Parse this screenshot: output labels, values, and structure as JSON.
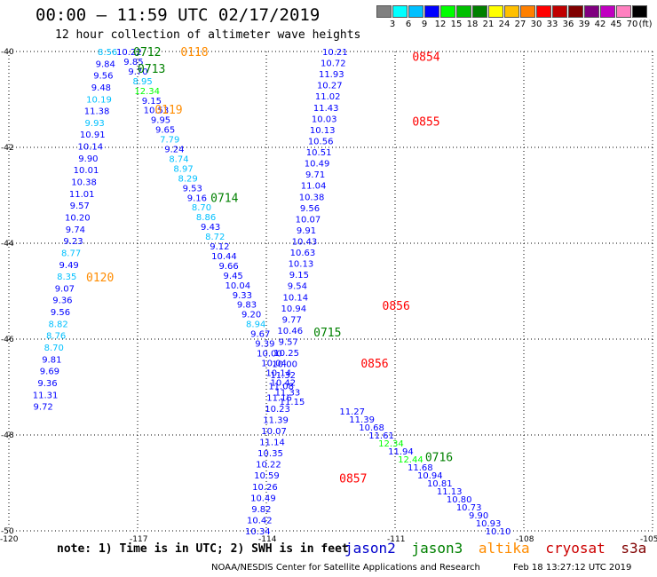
{
  "header": {
    "title": "00:00 — 11:59 UTC 02/17/2019",
    "subtitle": "12 hour collection of altimeter wave heights"
  },
  "color_scale": {
    "labels": [
      "3",
      "6",
      "9",
      "12",
      "15",
      "18",
      "21",
      "24",
      "27",
      "30",
      "33",
      "36",
      "39",
      "42",
      "45",
      "70",
      "(ft)"
    ],
    "colors": [
      "#808080",
      "#00ffff",
      "#00c0ff",
      "#0000ff",
      "#00ff00",
      "#00c000",
      "#008000",
      "#ffff00",
      "#ffc000",
      "#ff8000",
      "#ff0000",
      "#c00000",
      "#800000",
      "#800080",
      "#c000c0",
      "#ff80c0",
      "#000000"
    ]
  },
  "axes": {
    "lat_labels": [
      "-40",
      "-42",
      "-44",
      "-46",
      "-48",
      "-50"
    ],
    "lon_labels": [
      "-120",
      "-117",
      "-114",
      "-111",
      "-108",
      "-105"
    ],
    "lat_range": [
      -50,
      -40
    ],
    "lon_range": [
      -120,
      -105
    ],
    "grid": true
  },
  "tracks": [
    {
      "name": "track-a",
      "start": [
        -117.7,
        -40.0
      ],
      "end": [
        -119.2,
        -47.4
      ],
      "values": [
        "8.56",
        "9.84",
        "9.56",
        "9.48",
        "10.19",
        "11.38",
        "9.93",
        "10.91",
        "10.14",
        "9.90",
        "10.01",
        "10.38",
        "11.01",
        "9.57",
        "10.20",
        "9.74",
        "9.23",
        "8.77",
        "9.49",
        "8.35",
        "9.07",
        "9.36",
        "9.56",
        "8.82",
        "8.76",
        "8.70",
        "9.81",
        "9.69",
        "9.36",
        "11.31",
        "9.72"
      ],
      "colors": [
        "#00c0ff",
        "#0000ff",
        "#0000ff",
        "#0000ff",
        "#00c0ff",
        "#0000ff",
        "#00c0ff",
        "#0000ff",
        "#0000ff",
        "#0000ff",
        "#0000ff",
        "#0000ff",
        "#0000ff",
        "#0000ff",
        "#0000ff",
        "#0000ff",
        "#0000ff",
        "#00c0ff",
        "#0000ff",
        "#00c0ff",
        "#0000ff",
        "#0000ff",
        "#0000ff",
        "#00c0ff",
        "#00c0ff",
        "#00c0ff",
        "#0000ff",
        "#0000ff",
        "#0000ff",
        "#0000ff",
        "#0000ff"
      ]
    },
    {
      "name": "track-b",
      "start": [
        -117.2,
        -40.0
      ],
      "end": [
        -113.4,
        -47.3
      ],
      "values": [
        "10.22",
        "9.85",
        "9.70",
        "8.95",
        "12.34",
        "9.15",
        "10.53",
        "9.95",
        "9.65",
        "7.79",
        "9.24",
        "8.74",
        "8.97",
        "8.29",
        "9.53",
        "9.16",
        "8.70",
        "8.86",
        "9.43",
        "8.72",
        "9.12",
        "10.44",
        "9.66",
        "9.45",
        "10.04",
        "9.33",
        "9.83",
        "9.20",
        "8.94",
        "9.67",
        "9.39",
        "10.00",
        "10.04",
        "10.14",
        "10.42",
        "11.33",
        "11.15"
      ],
      "colors": [
        "#0000ff",
        "#0000ff",
        "#0000ff",
        "#00c0ff",
        "#00ff00",
        "#0000ff",
        "#0000ff",
        "#0000ff",
        "#0000ff",
        "#00c0ff",
        "#0000ff",
        "#00c0ff",
        "#00c0ff",
        "#00c0ff",
        "#0000ff",
        "#0000ff",
        "#00c0ff",
        "#00c0ff",
        "#0000ff",
        "#00c0ff",
        "#0000ff",
        "#0000ff",
        "#0000ff",
        "#0000ff",
        "#0000ff",
        "#0000ff",
        "#0000ff",
        "#0000ff",
        "#00c0ff",
        "#0000ff",
        "#0000ff",
        "#0000ff",
        "#0000ff",
        "#0000ff",
        "#0000ff",
        "#0000ff",
        "#0000ff"
      ]
    },
    {
      "name": "track-c",
      "start": [
        -112.4,
        -40.0
      ],
      "end": [
        -114.2,
        -50.0
      ],
      "values": [
        "10.21",
        "10.72",
        "11.93",
        "10.27",
        "11.02",
        "11.43",
        "10.03",
        "10.13",
        "10.56",
        "10.51",
        "10.49",
        "9.71",
        "11.04",
        "10.38",
        "9.56",
        "10.07",
        "9.91",
        "10.43",
        "10.63",
        "10.13",
        "9.15",
        "9.54",
        "10.14",
        "10.94",
        "9.77",
        "10.46",
        "9.57",
        "10.25",
        "10.00",
        "11.32",
        "11.08",
        "11.16",
        "10.23",
        "11.39",
        "10.07",
        "11.14",
        "10.35",
        "10.22",
        "10.59",
        "10.26",
        "10.49",
        "9.82",
        "10.42",
        "10.34"
      ],
      "colors": [
        "#0000ff",
        "#0000ff",
        "#0000ff",
        "#0000ff",
        "#0000ff",
        "#0000ff",
        "#0000ff",
        "#0000ff",
        "#0000ff",
        "#0000ff",
        "#0000ff",
        "#0000ff",
        "#0000ff",
        "#0000ff",
        "#0000ff",
        "#0000ff",
        "#0000ff",
        "#0000ff",
        "#0000ff",
        "#0000ff",
        "#0000ff",
        "#0000ff",
        "#0000ff",
        "#0000ff",
        "#0000ff",
        "#0000ff",
        "#0000ff",
        "#0000ff",
        "#0000ff",
        "#0000ff",
        "#0000ff",
        "#0000ff",
        "#0000ff",
        "#0000ff",
        "#0000ff",
        "#0000ff",
        "#0000ff",
        "#0000ff",
        "#0000ff",
        "#0000ff",
        "#0000ff",
        "#0000ff",
        "#0000ff",
        "#0000ff"
      ]
    },
    {
      "name": "track-d",
      "start": [
        -112.0,
        -47.5
      ],
      "end": [
        -108.6,
        -50.0
      ],
      "values": [
        "11.27",
        "11.39",
        "10.68",
        "11.61",
        "12.34",
        "11.94",
        "12.44",
        "11.68",
        "10.94",
        "10.81",
        "11.13",
        "10.80",
        "10.73",
        "9.90",
        "10.93",
        "10.10"
      ],
      "colors": [
        "#0000ff",
        "#0000ff",
        "#0000ff",
        "#0000ff",
        "#00ff00",
        "#0000ff",
        "#00ff00",
        "#0000ff",
        "#0000ff",
        "#0000ff",
        "#0000ff",
        "#0000ff",
        "#0000ff",
        "#0000ff",
        "#0000ff",
        "#0000ff"
      ]
    }
  ],
  "time_labels": [
    {
      "text": "0712",
      "color": "#008000",
      "lon": -117.1,
      "lat": -40.0
    },
    {
      "text": "0118",
      "color": "#ff8c00",
      "lon": -116.0,
      "lat": -40.0
    },
    {
      "text": "0713",
      "color": "#008000",
      "lon": -117.0,
      "lat": -40.35
    },
    {
      "text": "0119",
      "color": "#ff8c00",
      "lon": -116.6,
      "lat": -41.2
    },
    {
      "text": "0714",
      "color": "#008000",
      "lon": -115.3,
      "lat": -43.05
    },
    {
      "text": "0120",
      "color": "#ff8c00",
      "lon": -118.2,
      "lat": -44.7
    },
    {
      "text": "0715",
      "color": "#008000",
      "lon": -112.9,
      "lat": -45.85
    },
    {
      "text": "0716",
      "color": "#008000",
      "lon": -110.3,
      "lat": -48.45
    },
    {
      "text": "0854",
      "color": "#ff0000",
      "lon": -110.6,
      "lat": -40.1
    },
    {
      "text": "0855",
      "color": "#ff0000",
      "lon": -110.6,
      "lat": -41.45
    },
    {
      "text": "0856",
      "color": "#ff0000",
      "lon": -111.3,
      "lat": -45.3
    },
    {
      "text": "0856",
      "color": "#ff0000",
      "lon": -111.8,
      "lat": -46.5
    },
    {
      "text": "0857",
      "color": "#ff0000",
      "lon": -112.3,
      "lat": -48.9
    }
  ],
  "note": "note: 1) Time is in UTC; 2) SWH is in feet",
  "legend": [
    {
      "name": "jason2",
      "color": "#0000cc"
    },
    {
      "name": "jason3",
      "color": "#008000"
    },
    {
      "name": "altika",
      "color": "#ff8c00"
    },
    {
      "name": "cryosat",
      "color": "#cc0000"
    },
    {
      "name": "s3a",
      "color": "#800000"
    }
  ],
  "footer": {
    "credit": "NOAA/NESDIS Center for Satellite Applications and Research",
    "stamp": "Feb 18 13:27:12 UTC 2019"
  }
}
